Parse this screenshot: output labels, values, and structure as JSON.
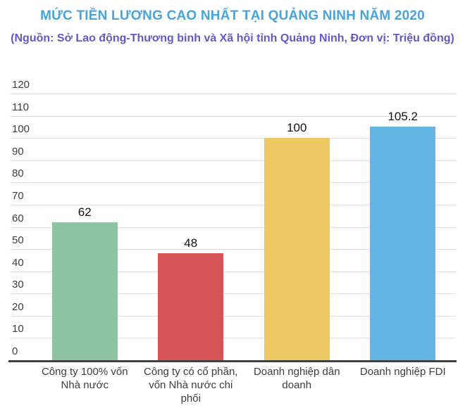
{
  "header": {
    "title": "MỨC TIỀN LƯƠNG CAO NHẤT TẠI QUẢNG NINH NĂM 2020",
    "subtitle": "(Nguồn: Sở Lao động-Thương binh và Xã hội tỉnh Quảng Ninh, Đơn vị: Triệu đồng)",
    "title_color": "#46a4de",
    "subtitle_color": "#6159c5"
  },
  "chart_data": {
    "type": "bar",
    "title": "MỨC TIỀN LƯƠNG CAO NHẤT TẠI QUẢNG NINH NĂM 2020",
    "subtitle": "(Nguồn: Sở Lao động-Thương binh và Xã hội tỉnh Quảng Ninh, Đơn vị: Triệu đồng)",
    "unit": "Triệu đồng",
    "categories": [
      "Công ty 100% vốn Nhà nước",
      "Công ty có cổ phần, vốn Nhà nước chi phối",
      "Doanh nghiệp dân doanh",
      "Doanh nghiệp FDI"
    ],
    "values": [
      62,
      48,
      100,
      105.2
    ],
    "value_labels": [
      "62",
      "48",
      "100",
      "105.2"
    ],
    "bar_colors": [
      "#8dc3a1",
      "#d75456",
      "#edc862",
      "#62b5e5"
    ],
    "xlabel": "",
    "ylabel": "",
    "ylim": [
      0,
      120
    ],
    "ytick_step": 10,
    "yticks": [
      0,
      10,
      20,
      30,
      40,
      50,
      60,
      70,
      80,
      90,
      100,
      110,
      120
    ],
    "grid": true,
    "gridline_color": "#e0e0e0",
    "baseline_color": "#404040",
    "legend": "none"
  }
}
